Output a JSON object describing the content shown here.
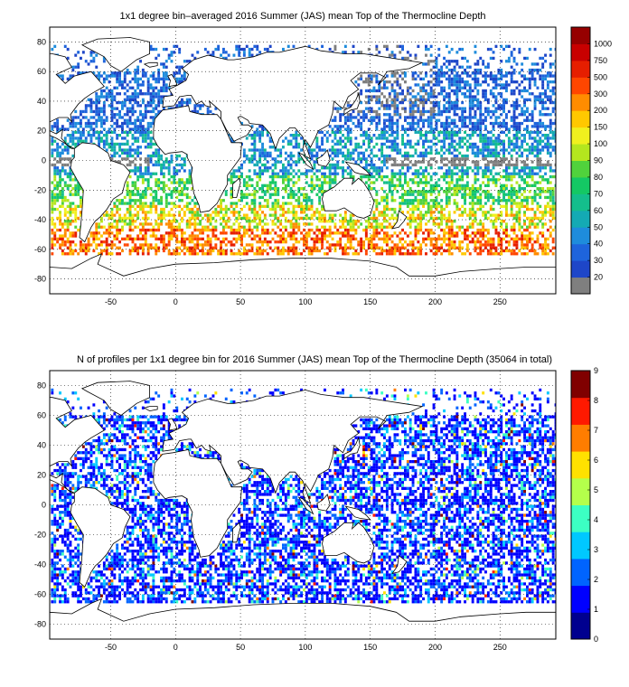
{
  "panels": [
    {
      "title": "1x1 degree bin–averaged 2016 Summer (JAS) mean Top of the Thermocline Depth",
      "colorbar": {
        "labels": [
          "20",
          "30",
          "40",
          "50",
          "60",
          "70",
          "80",
          "90",
          "100",
          "150",
          "200",
          "300",
          "500",
          "750",
          "1000"
        ],
        "colors": [
          "#7f7f7f",
          "#1e46c8",
          "#1e64dc",
          "#1e8cdc",
          "#14aab4",
          "#14be8c",
          "#14c864",
          "#50d23c",
          "#b4e61e",
          "#f0f01e",
          "#ffc800",
          "#ff8c00",
          "#ff4600",
          "#e61e00",
          "#c80000",
          "#960000"
        ]
      }
    },
    {
      "title": "N of profiles per 1x1 degree bin for 2016 Summer (JAS) mean Top of the Thermocline Depth  (35064 in total)",
      "colorbar": {
        "labels": [
          "0",
          "1",
          "2",
          "3",
          "4",
          "5",
          "6",
          "7",
          "8",
          "9"
        ],
        "colors": [
          "#00008f",
          "#0000ff",
          "#0064ff",
          "#00c8ff",
          "#3cffc3",
          "#b4ff4b",
          "#ffe100",
          "#ff7d00",
          "#ff1900",
          "#800000"
        ]
      }
    }
  ],
  "axes": {
    "x_ticks": [
      "-50",
      "0",
      "50",
      "100",
      "150",
      "200",
      "250"
    ],
    "y_ticks": [
      "80",
      "60",
      "40",
      "20",
      "0",
      "-20",
      "-40",
      "-60",
      "-80"
    ]
  }
}
